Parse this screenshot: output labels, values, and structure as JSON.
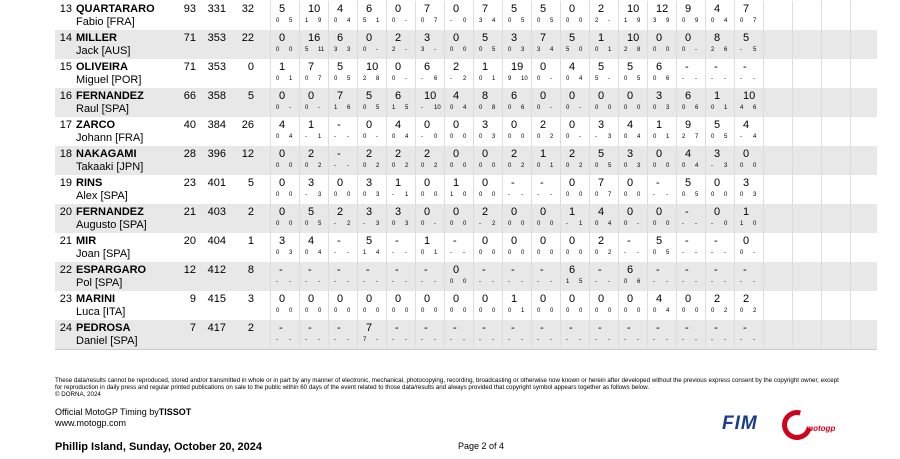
{
  "table": {
    "rows": [
      {
        "pos": "13",
        "name": "QUARTARARO",
        "sub": "Fabio [FRA]",
        "stats": [
          "93",
          "331",
          "32"
        ],
        "races": [
          [
            "5",
            "0",
            "5"
          ],
          [
            "10",
            "1",
            "9"
          ],
          [
            "4",
            "0",
            "4"
          ],
          [
            "6",
            "5",
            "1"
          ],
          [
            "0",
            "0",
            "-"
          ],
          [
            "7",
            "0",
            "7"
          ],
          [
            "0",
            "-",
            "0"
          ],
          [
            "7",
            "3",
            "4"
          ],
          [
            "5",
            "0",
            "5"
          ],
          [
            "5",
            "0",
            "5"
          ],
          [
            "0",
            "0",
            "0"
          ],
          [
            "2",
            "2",
            "-"
          ],
          [
            "10",
            "1",
            "9"
          ],
          [
            "12",
            "3",
            "9"
          ],
          [
            "9",
            "0",
            "9"
          ],
          [
            "4",
            "0",
            "4"
          ],
          [
            "7",
            "0",
            "7"
          ]
        ]
      },
      {
        "pos": "14",
        "name": "MILLER",
        "sub": "Jack [AUS]",
        "stats": [
          "71",
          "353",
          "22"
        ],
        "races": [
          [
            "0",
            "0",
            "0"
          ],
          [
            "16",
            "5",
            "11"
          ],
          [
            "6",
            "3",
            "3"
          ],
          [
            "0",
            "0",
            "-"
          ],
          [
            "2",
            "2",
            "-"
          ],
          [
            "3",
            "3",
            "-"
          ],
          [
            "0",
            "0",
            "0"
          ],
          [
            "5",
            "0",
            "5"
          ],
          [
            "3",
            "0",
            "3"
          ],
          [
            "7",
            "3",
            "4"
          ],
          [
            "5",
            "5",
            "0"
          ],
          [
            "1",
            "0",
            "1"
          ],
          [
            "10",
            "2",
            "8"
          ],
          [
            "0",
            "0",
            "0"
          ],
          [
            "0",
            "0",
            "-"
          ],
          [
            "8",
            "2",
            "6"
          ],
          [
            "5",
            "-",
            "5"
          ]
        ]
      },
      {
        "pos": "15",
        "name": "OLIVEIRA",
        "sub": "Miguel [POR]",
        "stats": [
          "71",
          "353",
          "0"
        ],
        "races": [
          [
            "1",
            "0",
            "1"
          ],
          [
            "7",
            "0",
            "7"
          ],
          [
            "5",
            "0",
            "5"
          ],
          [
            "10",
            "2",
            "8"
          ],
          [
            "0",
            "0",
            "-"
          ],
          [
            "6",
            "-",
            "6"
          ],
          [
            "2",
            "-",
            "2"
          ],
          [
            "1",
            "0",
            "1"
          ],
          [
            "19",
            "9",
            "10"
          ],
          [
            "0",
            "0",
            "-"
          ],
          [
            "4",
            "0",
            "4"
          ],
          [
            "5",
            "5",
            "-"
          ],
          [
            "5",
            "0",
            "5"
          ],
          [
            "6",
            "0",
            "6"
          ],
          [
            "-",
            "-",
            "-"
          ],
          [
            "-",
            "-",
            "-"
          ],
          [
            "-",
            "-",
            "-"
          ]
        ]
      },
      {
        "pos": "16",
        "name": "FERNANDEZ",
        "sub": "Raul [SPA]",
        "stats": [
          "66",
          "358",
          "5"
        ],
        "races": [
          [
            "0",
            "0",
            "-"
          ],
          [
            "0",
            "0",
            "-"
          ],
          [
            "7",
            "1",
            "6"
          ],
          [
            "5",
            "0",
            "5"
          ],
          [
            "6",
            "1",
            "5"
          ],
          [
            "10",
            "-",
            "10"
          ],
          [
            "4",
            "0",
            "4"
          ],
          [
            "8",
            "0",
            "8"
          ],
          [
            "6",
            "0",
            "6"
          ],
          [
            "0",
            "0",
            "-"
          ],
          [
            "0",
            "0",
            "-"
          ],
          [
            "0",
            "0",
            "0"
          ],
          [
            "0",
            "0",
            "0"
          ],
          [
            "3",
            "0",
            "3"
          ],
          [
            "6",
            "0",
            "6"
          ],
          [
            "1",
            "0",
            "1"
          ],
          [
            "10",
            "4",
            "6"
          ]
        ]
      },
      {
        "pos": "17",
        "name": "ZARCO",
        "sub": "Johann [FRA]",
        "stats": [
          "40",
          "384",
          "26"
        ],
        "races": [
          [
            "4",
            "0",
            "4"
          ],
          [
            "1",
            "-",
            "1"
          ],
          [
            "-",
            "-",
            "-"
          ],
          [
            "0",
            "0",
            "-"
          ],
          [
            "4",
            "0",
            "4"
          ],
          [
            "0",
            "-",
            "0"
          ],
          [
            "0",
            "0",
            "0"
          ],
          [
            "3",
            "0",
            "3"
          ],
          [
            "0",
            "0",
            "0"
          ],
          [
            "2",
            "0",
            "2"
          ],
          [
            "0",
            "0",
            "-"
          ],
          [
            "3",
            "-",
            "3"
          ],
          [
            "4",
            "0",
            "4"
          ],
          [
            "1",
            "0",
            "1"
          ],
          [
            "9",
            "2",
            "7"
          ],
          [
            "5",
            "0",
            "5"
          ],
          [
            "4",
            "-",
            "4"
          ]
        ]
      },
      {
        "pos": "18",
        "name": "NAKAGAMI",
        "sub": "Takaaki [JPN]",
        "stats": [
          "28",
          "396",
          "12"
        ],
        "races": [
          [
            "0",
            "0",
            "0"
          ],
          [
            "2",
            "0",
            "2"
          ],
          [
            "-",
            "-",
            "-"
          ],
          [
            "2",
            "0",
            "2"
          ],
          [
            "2",
            "0",
            "2"
          ],
          [
            "2",
            "0",
            "2"
          ],
          [
            "0",
            "0",
            "0"
          ],
          [
            "0",
            "0",
            "0"
          ],
          [
            "2",
            "0",
            "2"
          ],
          [
            "1",
            "0",
            "1"
          ],
          [
            "2",
            "0",
            "2"
          ],
          [
            "5",
            "0",
            "5"
          ],
          [
            "3",
            "0",
            "3"
          ],
          [
            "0",
            "0",
            "0"
          ],
          [
            "4",
            "0",
            "4"
          ],
          [
            "3",
            "-",
            "3"
          ],
          [
            "0",
            "0",
            "0"
          ]
        ]
      },
      {
        "pos": "19",
        "name": "RINS",
        "sub": "Alex [SPA]",
        "stats": [
          "23",
          "401",
          "5"
        ],
        "races": [
          [
            "0",
            "0",
            "0"
          ],
          [
            "3",
            "-",
            "3"
          ],
          [
            "0",
            "0",
            "0"
          ],
          [
            "3",
            "0",
            "3"
          ],
          [
            "1",
            "-",
            "1"
          ],
          [
            "0",
            "0",
            "0"
          ],
          [
            "1",
            "1",
            "0"
          ],
          [
            "0",
            "0",
            "0"
          ],
          [
            "-",
            "-",
            "-"
          ],
          [
            "-",
            "-",
            "-"
          ],
          [
            "0",
            "0",
            "0"
          ],
          [
            "7",
            "0",
            "7"
          ],
          [
            "0",
            "0",
            "0"
          ],
          [
            "-",
            "-",
            "-"
          ],
          [
            "5",
            "0",
            "5"
          ],
          [
            "0",
            "0",
            "0"
          ],
          [
            "3",
            "0",
            "3"
          ]
        ]
      },
      {
        "pos": "20",
        "name": "FERNANDEZ",
        "sub": "Augusto [SPA]",
        "stats": [
          "21",
          "403",
          "2"
        ],
        "races": [
          [
            "0",
            "0",
            "0"
          ],
          [
            "5",
            "0",
            "5"
          ],
          [
            "2",
            "-",
            "2"
          ],
          [
            "3",
            "-",
            "3"
          ],
          [
            "3",
            "0",
            "3"
          ],
          [
            "0",
            "0",
            "-"
          ],
          [
            "0",
            "0",
            "0"
          ],
          [
            "2",
            "-",
            "2"
          ],
          [
            "0",
            "0",
            "0"
          ],
          [
            "0",
            "0",
            "0"
          ],
          [
            "1",
            "-",
            "1"
          ],
          [
            "4",
            "0",
            "4"
          ],
          [
            "0",
            "0",
            "-"
          ],
          [
            "0",
            "0",
            "0"
          ],
          [
            "-",
            "-",
            "-"
          ],
          [
            "0",
            "-",
            "0"
          ],
          [
            "1",
            "1",
            "0"
          ]
        ]
      },
      {
        "pos": "21",
        "name": "MIR",
        "sub": "Joan [SPA]",
        "stats": [
          "20",
          "404",
          "1"
        ],
        "races": [
          [
            "3",
            "0",
            "3"
          ],
          [
            "4",
            "0",
            "4"
          ],
          [
            "-",
            "-",
            "-"
          ],
          [
            "5",
            "1",
            "4"
          ],
          [
            "-",
            "-",
            "-"
          ],
          [
            "1",
            "0",
            "1"
          ],
          [
            "-",
            "-",
            "-"
          ],
          [
            "0",
            "0",
            "0"
          ],
          [
            "0",
            "0",
            "0"
          ],
          [
            "0",
            "0",
            "0"
          ],
          [
            "0",
            "0",
            "0"
          ],
          [
            "2",
            "0",
            "2"
          ],
          [
            "-",
            "-",
            "-"
          ],
          [
            "5",
            "0",
            "5"
          ],
          [
            "-",
            "-",
            "-"
          ],
          [
            "-",
            "-",
            "-"
          ],
          [
            "0",
            "0",
            "-"
          ]
        ]
      },
      {
        "pos": "22",
        "name": "ESPARGARO",
        "sub": "Pol [SPA]",
        "stats": [
          "12",
          "412",
          "8"
        ],
        "races": [
          [
            "-",
            "-",
            "-"
          ],
          [
            "-",
            "-",
            "-"
          ],
          [
            "-",
            "-",
            "-"
          ],
          [
            "-",
            "-",
            "-"
          ],
          [
            "-",
            "-",
            "-"
          ],
          [
            "-",
            "-",
            "-"
          ],
          [
            "0",
            "0",
            "0"
          ],
          [
            "-",
            "-",
            "-"
          ],
          [
            "-",
            "-",
            "-"
          ],
          [
            "-",
            "-",
            "-"
          ],
          [
            "6",
            "1",
            "5"
          ],
          [
            "-",
            "-",
            "-"
          ],
          [
            "6",
            "0",
            "6"
          ],
          [
            "-",
            "-",
            "-"
          ],
          [
            "-",
            "-",
            "-"
          ],
          [
            "-",
            "-",
            "-"
          ],
          [
            "-",
            "-",
            "-"
          ]
        ]
      },
      {
        "pos": "23",
        "name": "MARINI",
        "sub": "Luca [ITA]",
        "stats": [
          "9",
          "415",
          "3"
        ],
        "races": [
          [
            "0",
            "0",
            "0"
          ],
          [
            "0",
            "0",
            "0"
          ],
          [
            "0",
            "0",
            "0"
          ],
          [
            "0",
            "0",
            "0"
          ],
          [
            "0",
            "0",
            "0"
          ],
          [
            "0",
            "0",
            "0"
          ],
          [
            "0",
            "0",
            "0"
          ],
          [
            "0",
            "0",
            "0"
          ],
          [
            "1",
            "0",
            "1"
          ],
          [
            "0",
            "0",
            "0"
          ],
          [
            "0",
            "0",
            "0"
          ],
          [
            "0",
            "0",
            "0"
          ],
          [
            "0",
            "0",
            "0"
          ],
          [
            "4",
            "0",
            "4"
          ],
          [
            "0",
            "0",
            "0"
          ],
          [
            "2",
            "0",
            "2"
          ],
          [
            "2",
            "0",
            "2"
          ]
        ]
      },
      {
        "pos": "24",
        "name": "PEDROSA",
        "sub": "Daniel [SPA]",
        "stats": [
          "7",
          "417",
          "2"
        ],
        "races": [
          [
            "-",
            "-",
            "-"
          ],
          [
            "-",
            "-",
            "-"
          ],
          [
            "-",
            "-",
            "-"
          ],
          [
            "7",
            "7",
            "-"
          ],
          [
            "-",
            "-",
            "-"
          ],
          [
            "-",
            "-",
            "-"
          ],
          [
            "-",
            "-",
            "-"
          ],
          [
            "-",
            "-",
            "-"
          ],
          [
            "-",
            "-",
            "-"
          ],
          [
            "-",
            "-",
            "-"
          ],
          [
            "-",
            "-",
            "-"
          ],
          [
            "-",
            "-",
            "-"
          ],
          [
            "-",
            "-",
            "-"
          ],
          [
            "-",
            "-",
            "-"
          ],
          [
            "-",
            "-",
            "-"
          ],
          [
            "-",
            "-",
            "-"
          ],
          [
            "-",
            "-",
            "-"
          ]
        ]
      }
    ]
  },
  "footer": {
    "disclaimer": "These data/results cannot be reproduced, stored and/or transmitted in whole or in part by any manner of electronic, mechanical, photocopying, recording, broadcasting or otherwise now known or herein after developed without the previous express consent by the copyright owner, except for reproduction in daily press and regular printed publications on sale to the public within 60 days of the event related to those data/results and always provided that copyright symbol appears together as follows below.",
    "copyright": "© DORNA, 2024",
    "timing": "Official MotoGP Timing by",
    "sponsor": "TISSOT",
    "website": "www.motogp.com",
    "location": "Phillip Island, Sunday, October 20, 2024",
    "page": "Page 2 of 4",
    "logo_fim": "FIM",
    "logo_motogp": "motogp"
  }
}
